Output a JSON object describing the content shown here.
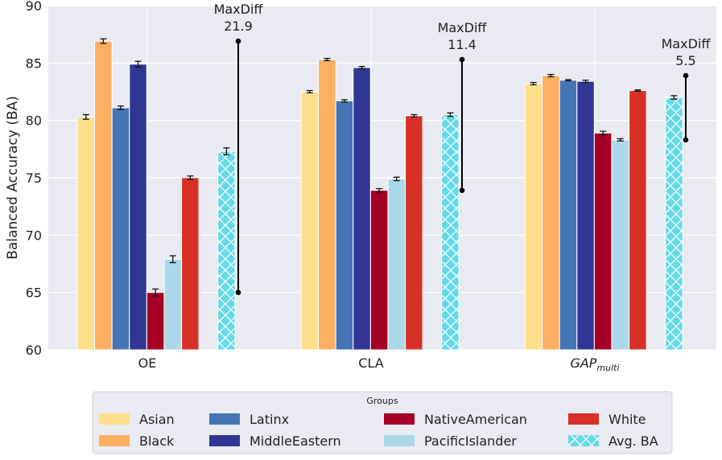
{
  "chart_data": {
    "type": "bar",
    "title": "",
    "xlabel": "",
    "ylabel": "Balanced Accuracy (BA)",
    "ylim": [
      60,
      90
    ],
    "yticks": [
      60,
      65,
      70,
      75,
      80,
      85,
      90
    ],
    "grid": true,
    "categories": [
      {
        "base": "OE",
        "sub": ""
      },
      {
        "base": "CLA",
        "sub": ""
      },
      {
        "base": "GAP",
        "sub": "multi"
      }
    ],
    "series": [
      {
        "name": "Asian",
        "color": "#fee08b",
        "values": [
          80.3,
          82.5,
          83.2
        ],
        "errors": [
          0.2,
          0.1,
          0.1
        ]
      },
      {
        "name": "Black",
        "color": "#fdae61",
        "values": [
          86.9,
          85.3,
          83.9
        ],
        "errors": [
          0.2,
          0.1,
          0.1
        ]
      },
      {
        "name": "Latinx",
        "color": "#4575b4",
        "values": [
          81.1,
          81.7,
          83.5
        ],
        "errors": [
          0.15,
          0.1,
          0.05
        ]
      },
      {
        "name": "MiddleEastern",
        "color": "#313695",
        "values": [
          84.9,
          84.6,
          83.4
        ],
        "errors": [
          0.25,
          0.1,
          0.1
        ]
      },
      {
        "name": "NativeAmerican",
        "color": "#a50026",
        "values": [
          65.0,
          73.9,
          78.9
        ],
        "errors": [
          0.3,
          0.15,
          0.15
        ]
      },
      {
        "name": "PacificIslander",
        "color": "#abd9e9",
        "values": [
          67.9,
          74.9,
          78.3
        ],
        "errors": [
          0.3,
          0.15,
          0.1
        ]
      },
      {
        "name": "White",
        "color": "#d73027",
        "values": [
          75.0,
          80.4,
          82.6
        ],
        "errors": [
          0.15,
          0.1,
          0.05
        ]
      },
      {
        "name": "Avg. BA",
        "color": "#66d9e8",
        "hatch": true,
        "values": [
          77.3,
          80.5,
          82.0
        ],
        "errors": [
          0.3,
          0.15,
          0.15
        ]
      }
    ],
    "annotations": [
      {
        "label": "MaxDiff",
        "value": "21.9",
        "low": 65.0,
        "high": 86.9
      },
      {
        "label": "MaxDiff",
        "value": "11.4",
        "low": 73.9,
        "high": 85.3
      },
      {
        "label": "MaxDiff",
        "value": "5.5",
        "low": 78.3,
        "high": 83.9
      }
    ],
    "legend": {
      "title": "Groups",
      "placement": "bottom",
      "columns": [
        [
          "Asian",
          "Black"
        ],
        [
          "Latinx",
          "MiddleEastern"
        ],
        [
          "NativeAmerican",
          "PacificIslander"
        ],
        [
          "White",
          "Avg. BA"
        ]
      ]
    }
  }
}
